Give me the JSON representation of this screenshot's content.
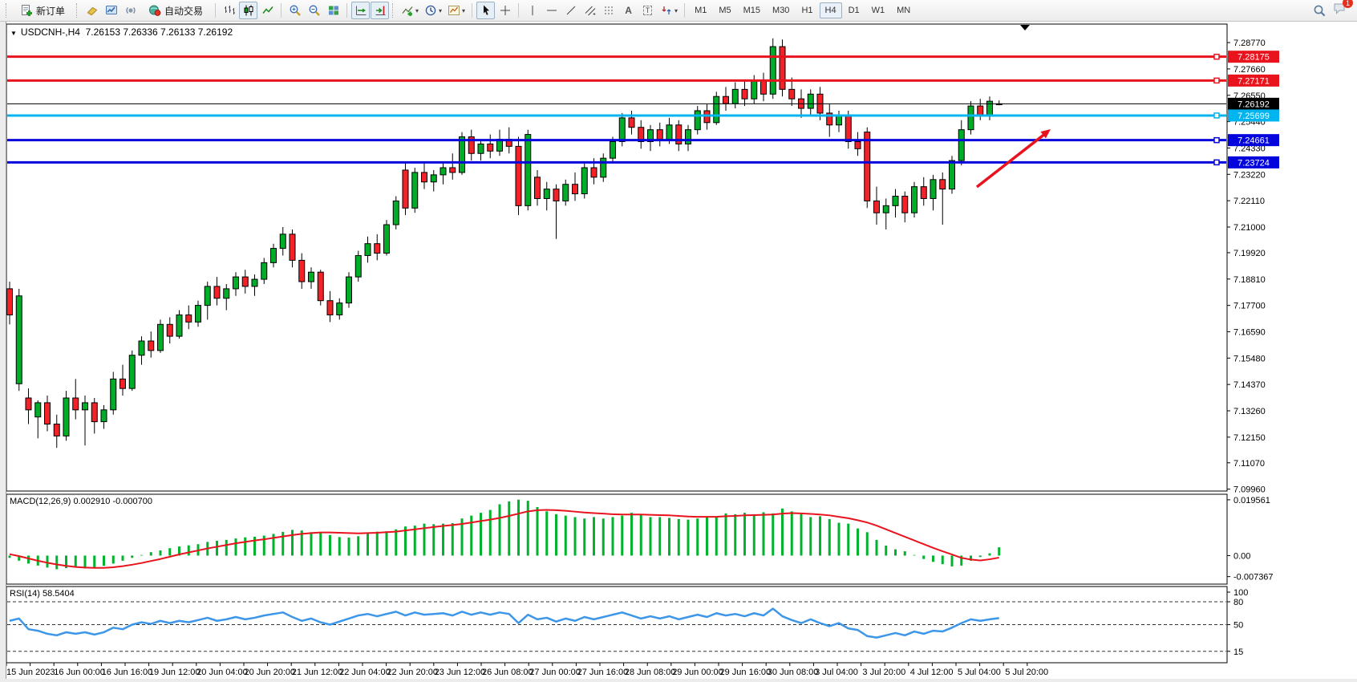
{
  "window": {
    "notification_badge": "1"
  },
  "toolbar": {
    "new_order_label": "新订单",
    "autotrading_label": "自动交易",
    "text_glyph": "A",
    "label_glyph": "T",
    "timeframes": [
      {
        "label": "M1",
        "active": false
      },
      {
        "label": "M5",
        "active": false
      },
      {
        "label": "M15",
        "active": false
      },
      {
        "label": "M30",
        "active": false
      },
      {
        "label": "H1",
        "active": false
      },
      {
        "label": "H4",
        "active": true
      },
      {
        "label": "D1",
        "active": false
      },
      {
        "label": "W1",
        "active": false
      },
      {
        "label": "MN",
        "active": false
      }
    ]
  },
  "chart": {
    "title": "USDCNH-,H4",
    "ohlc": "7.26153 7.26336 7.26133 7.26192",
    "price_axis_ticks": [
      "7.28770",
      "7.27660",
      "7.26550",
      "7.25440",
      "7.24330",
      "7.23220",
      "7.22110",
      "7.21000",
      "7.19920",
      "7.18810",
      "7.17700",
      "7.16590",
      "7.15480",
      "7.14370",
      "7.13260",
      "7.12150",
      "7.11070",
      "7.09960"
    ],
    "lines": [
      {
        "label": "7.28175",
        "price": 7.28175,
        "color": "#e8131d",
        "width": 3,
        "handle": true
      },
      {
        "label": "7.27171",
        "price": 7.27171,
        "color": "#e8131d",
        "width": 3,
        "handle": true
      },
      {
        "label": "7.26192",
        "price": 7.26192,
        "color": "#000000",
        "width": 1,
        "handle": false
      },
      {
        "label": "7.25699",
        "price": 7.25699,
        "color": "#00b4f0",
        "width": 3,
        "handle": true
      },
      {
        "label": "7.24661",
        "price": 7.24661,
        "color": "#0404dd",
        "width": 3,
        "handle": true
      },
      {
        "label": "7.23724",
        "price": 7.23724,
        "color": "#0404dd",
        "width": 3,
        "handle": true
      }
    ],
    "time_axis": [
      "15 Jun 2023",
      "16 Jun 00:00",
      "16 Jun 16:00",
      "19 Jun 12:00",
      "20 Jun 04:00",
      "20 Jun 20:00",
      "21 Jun 12:00",
      "22 Jun 04:00",
      "22 Jun 20:00",
      "23 Jun 12:00",
      "26 Jun 08:00",
      "27 Jun 00:00",
      "27 Jun 16:00",
      "28 Jun 08:00",
      "29 Jun 00:00",
      "29 Jun 16:00",
      "30 Jun 08:00",
      "3 Jul 04:00",
      "3 Jul 20:00",
      "4 Jul 12:00",
      "5 Jul 04:00",
      "5 Jul 20:00"
    ]
  },
  "macd": {
    "label": "MACD(12,26,9)",
    "value_main": "0.002910",
    "value_signal": "-0.000700",
    "axis_ticks": [
      "0.019561",
      "0.00",
      "-0.007367"
    ]
  },
  "rsi": {
    "label": "RSI(14)",
    "value": "58.5404",
    "axis_ticks": [
      "100",
      "80",
      "50",
      "15"
    ]
  },
  "chart_data": {
    "type": "candlestick",
    "symbol": "USDCNH",
    "timeframe": "H4",
    "title": "USDCNH-,H4 7.26153 7.26336 7.26133 7.26192",
    "price_range": [
      7.0988,
      7.2955
    ],
    "hlines": [
      7.28175,
      7.27171,
      7.26192,
      7.25699,
      7.24661,
      7.23724
    ],
    "candles": [
      [
        7.184,
        7.187,
        7.169,
        7.173
      ],
      [
        7.144,
        7.184,
        7.141,
        7.181
      ],
      [
        7.138,
        7.142,
        7.127,
        7.133
      ],
      [
        7.13,
        7.137,
        7.121,
        7.136
      ],
      [
        7.136,
        7.139,
        7.124,
        7.127
      ],
      [
        7.127,
        7.131,
        7.117,
        7.122
      ],
      [
        7.122,
        7.141,
        7.12,
        7.138
      ],
      [
        7.138,
        7.146,
        7.129,
        7.133
      ],
      [
        7.133,
        7.139,
        7.118,
        7.136
      ],
      [
        7.136,
        7.138,
        7.123,
        7.128
      ],
      [
        7.128,
        7.135,
        7.125,
        7.133
      ],
      [
        7.133,
        7.149,
        7.131,
        7.146
      ],
      [
        7.146,
        7.152,
        7.139,
        7.142
      ],
      [
        7.142,
        7.158,
        7.141,
        7.156
      ],
      [
        7.156,
        7.164,
        7.152,
        7.162
      ],
      [
        7.162,
        7.166,
        7.155,
        7.158
      ],
      [
        7.158,
        7.171,
        7.157,
        7.169
      ],
      [
        7.169,
        7.172,
        7.161,
        7.164
      ],
      [
        7.164,
        7.175,
        7.163,
        7.173
      ],
      [
        7.173,
        7.177,
        7.167,
        7.17
      ],
      [
        7.17,
        7.179,
        7.168,
        7.177
      ],
      [
        7.177,
        7.187,
        7.171,
        7.185
      ],
      [
        7.185,
        7.189,
        7.177,
        7.18
      ],
      [
        7.18,
        7.186,
        7.175,
        7.184
      ],
      [
        7.184,
        7.191,
        7.181,
        7.189
      ],
      [
        7.189,
        7.192,
        7.182,
        7.185
      ],
      [
        7.185,
        7.19,
        7.181,
        7.188
      ],
      [
        7.188,
        7.197,
        7.186,
        7.195
      ],
      [
        7.195,
        7.203,
        7.193,
        7.201
      ],
      [
        7.201,
        7.21,
        7.198,
        7.207
      ],
      [
        7.207,
        7.209,
        7.193,
        7.196
      ],
      [
        7.196,
        7.199,
        7.184,
        7.187
      ],
      [
        7.187,
        7.193,
        7.184,
        7.191
      ],
      [
        7.191,
        7.192,
        7.177,
        7.179
      ],
      [
        7.179,
        7.183,
        7.17,
        7.173
      ],
      [
        7.173,
        7.18,
        7.171,
        7.178
      ],
      [
        7.178,
        7.191,
        7.176,
        7.189
      ],
      [
        7.189,
        7.2,
        7.187,
        7.198
      ],
      [
        7.198,
        7.206,
        7.195,
        7.203
      ],
      [
        7.203,
        7.207,
        7.196,
        7.199
      ],
      [
        7.199,
        7.213,
        7.198,
        7.211
      ],
      [
        7.211,
        7.223,
        7.209,
        7.221
      ],
      [
        7.234,
        7.237,
        7.215,
        7.218
      ],
      [
        7.218,
        7.235,
        7.216,
        7.233
      ],
      [
        7.233,
        7.237,
        7.226,
        7.229
      ],
      [
        7.229,
        7.234,
        7.225,
        7.232
      ],
      [
        7.232,
        7.237,
        7.228,
        7.235
      ],
      [
        7.235,
        7.241,
        7.23,
        7.233
      ],
      [
        7.233,
        7.25,
        7.232,
        7.248
      ],
      [
        7.248,
        7.251,
        7.238,
        7.241
      ],
      [
        7.241,
        7.247,
        7.238,
        7.245
      ],
      [
        7.245,
        7.249,
        7.239,
        7.242
      ],
      [
        7.242,
        7.251,
        7.24,
        7.247
      ],
      [
        7.247,
        7.252,
        7.241,
        7.244
      ],
      [
        7.244,
        7.248,
        7.215,
        7.219
      ],
      [
        7.219,
        7.251,
        7.217,
        7.249
      ],
      [
        7.231,
        7.234,
        7.219,
        7.222
      ],
      [
        7.222,
        7.229,
        7.217,
        7.226
      ],
      [
        7.226,
        7.228,
        7.205,
        7.221
      ],
      [
        7.221,
        7.23,
        7.219,
        7.228
      ],
      [
        7.228,
        7.233,
        7.221,
        7.224
      ],
      [
        7.224,
        7.237,
        7.222,
        7.235
      ],
      [
        7.235,
        7.239,
        7.228,
        7.231
      ],
      [
        7.231,
        7.241,
        7.229,
        7.239
      ],
      [
        7.239,
        7.248,
        7.237,
        7.246
      ],
      [
        7.246,
        7.258,
        7.244,
        7.256
      ],
      [
        7.256,
        7.259,
        7.249,
        7.252
      ],
      [
        7.252,
        7.255,
        7.243,
        7.246
      ],
      [
        7.246,
        7.253,
        7.242,
        7.251
      ],
      [
        7.251,
        7.254,
        7.244,
        7.247
      ],
      [
        7.247,
        7.256,
        7.245,
        7.253
      ],
      [
        7.253,
        7.255,
        7.242,
        7.245
      ],
      [
        7.245,
        7.253,
        7.242,
        7.251
      ],
      [
        7.251,
        7.261,
        7.249,
        7.259
      ],
      [
        7.259,
        7.262,
        7.251,
        7.254
      ],
      [
        7.254,
        7.267,
        7.253,
        7.265
      ],
      [
        7.265,
        7.269,
        7.259,
        7.262
      ],
      [
        7.262,
        7.271,
        7.26,
        7.268
      ],
      [
        7.268,
        7.272,
        7.261,
        7.264
      ],
      [
        7.264,
        7.274,
        7.262,
        7.272
      ],
      [
        7.272,
        7.275,
        7.263,
        7.266
      ],
      [
        7.266,
        7.2895,
        7.264,
        7.286
      ],
      [
        7.286,
        7.289,
        7.265,
        7.268
      ],
      [
        7.268,
        7.273,
        7.261,
        7.264
      ],
      [
        7.264,
        7.268,
        7.256,
        7.26
      ],
      [
        7.26,
        7.268,
        7.257,
        7.266
      ],
      [
        7.266,
        7.269,
        7.255,
        7.258
      ],
      [
        7.258,
        7.262,
        7.248,
        7.253
      ],
      [
        7.253,
        7.259,
        7.25,
        7.257
      ],
      [
        7.257,
        7.259,
        7.243,
        7.246
      ],
      [
        7.246,
        7.25,
        7.24,
        7.243
      ],
      [
        7.25,
        7.252,
        7.218,
        7.221
      ],
      [
        7.221,
        7.227,
        7.211,
        7.216
      ],
      [
        7.216,
        7.222,
        7.209,
        7.219
      ],
      [
        7.219,
        7.226,
        7.214,
        7.223
      ],
      [
        7.223,
        7.225,
        7.212,
        7.216
      ],
      [
        7.216,
        7.229,
        7.214,
        7.227
      ],
      [
        7.227,
        7.231,
        7.219,
        7.222
      ],
      [
        7.222,
        7.232,
        7.217,
        7.23
      ],
      [
        7.23,
        7.233,
        7.211,
        7.226
      ],
      [
        7.226,
        7.24,
        7.224,
        7.238
      ],
      [
        7.238,
        7.255,
        7.236,
        7.251
      ],
      [
        7.251,
        7.263,
        7.249,
        7.261
      ],
      [
        7.261,
        7.264,
        7.255,
        7.257
      ],
      [
        7.257,
        7.265,
        7.255,
        7.263
      ],
      [
        7.26153,
        7.26336,
        7.26133,
        7.26192
      ]
    ],
    "macd": {
      "range": [
        -0.01,
        0.0215
      ],
      "histogram": [
        -0.0008,
        -0.0018,
        -0.0028,
        -0.0035,
        -0.0042,
        -0.0048,
        -0.0044,
        -0.004,
        -0.0045,
        -0.0042,
        -0.0036,
        -0.0028,
        -0.0018,
        -0.0008,
        0.0002,
        0.0012,
        0.0018,
        0.0026,
        0.0032,
        0.0036,
        0.004,
        0.0048,
        0.0052,
        0.0055,
        0.006,
        0.0064,
        0.0066,
        0.007,
        0.0076,
        0.0083,
        0.009,
        0.0088,
        0.0082,
        0.008,
        0.0072,
        0.0065,
        0.0063,
        0.0068,
        0.0077,
        0.0084,
        0.0085,
        0.0092,
        0.0102,
        0.0105,
        0.0112,
        0.011,
        0.0112,
        0.0114,
        0.013,
        0.014,
        0.015,
        0.016,
        0.018,
        0.019,
        0.0196,
        0.0192,
        0.017,
        0.0155,
        0.0145,
        0.014,
        0.0135,
        0.013,
        0.0135,
        0.013,
        0.0135,
        0.014,
        0.015,
        0.0145,
        0.0135,
        0.0135,
        0.0132,
        0.0128,
        0.0126,
        0.013,
        0.0138,
        0.0135,
        0.0148,
        0.0145,
        0.015,
        0.0145,
        0.0152,
        0.0148,
        0.0165,
        0.0155,
        0.0145,
        0.0135,
        0.0138,
        0.0128,
        0.0115,
        0.0112,
        0.0095,
        0.0082,
        0.0055,
        0.0035,
        0.0022,
        0.0015,
        0.0002,
        -0.0012,
        -0.0022,
        -0.003,
        -0.0038,
        -0.0035,
        -0.0018,
        -0.0005,
        0.0008,
        0.0029
      ],
      "signal": [
        0.0005,
        -0.0002,
        -0.001,
        -0.0018,
        -0.0025,
        -0.0031,
        -0.0036,
        -0.004,
        -0.0042,
        -0.0043,
        -0.0043,
        -0.0041,
        -0.0037,
        -0.0032,
        -0.0026,
        -0.0019,
        -0.0012,
        -0.0004,
        0.0004,
        0.0011,
        0.0018,
        0.0025,
        0.0031,
        0.0037,
        0.0043,
        0.0048,
        0.0053,
        0.0057,
        0.0062,
        0.0067,
        0.0072,
        0.0076,
        0.0079,
        0.0081,
        0.0081,
        0.008,
        0.0079,
        0.0078,
        0.0079,
        0.008,
        0.0082,
        0.0084,
        0.0088,
        0.0092,
        0.0096,
        0.01,
        0.0104,
        0.0107,
        0.0111,
        0.0116,
        0.0121,
        0.0126,
        0.0132,
        0.0139,
        0.0147,
        0.0155,
        0.0159,
        0.016,
        0.0159,
        0.0157,
        0.0154,
        0.0151,
        0.0149,
        0.0147,
        0.0145,
        0.0144,
        0.0144,
        0.0144,
        0.0143,
        0.0142,
        0.0141,
        0.0139,
        0.0137,
        0.0136,
        0.0136,
        0.0136,
        0.0138,
        0.0139,
        0.0141,
        0.0142,
        0.0143,
        0.0144,
        0.0147,
        0.0149,
        0.0148,
        0.0146,
        0.0144,
        0.0141,
        0.0136,
        0.0131,
        0.0124,
        0.0116,
        0.0105,
        0.0092,
        0.0079,
        0.0066,
        0.0053,
        0.004,
        0.0027,
        0.0015,
        0.0004,
        -0.0008,
        -0.0014,
        -0.0017,
        -0.0013,
        -0.0007
      ]
    },
    "rsi": {
      "range": [
        0,
        100
      ],
      "levels": [
        80,
        50,
        15
      ],
      "values": [
        55,
        58,
        44,
        42,
        38,
        36,
        40,
        38,
        40,
        37,
        40,
        46,
        44,
        50,
        53,
        51,
        55,
        52,
        55,
        53,
        56,
        59,
        55,
        57,
        60,
        57,
        59,
        62,
        64,
        66,
        60,
        55,
        58,
        53,
        50,
        54,
        58,
        62,
        64,
        61,
        64,
        67,
        62,
        66,
        63,
        64,
        65,
        62,
        67,
        63,
        66,
        63,
        66,
        64,
        52,
        63,
        57,
        59,
        54,
        58,
        55,
        60,
        57,
        60,
        63,
        66,
        62,
        58,
        61,
        58,
        61,
        57,
        60,
        63,
        60,
        65,
        62,
        64,
        61,
        65,
        62,
        71,
        61,
        56,
        52,
        57,
        52,
        48,
        52,
        45,
        43,
        35,
        33,
        36,
        39,
        36,
        41,
        38,
        42,
        41,
        46,
        52,
        57,
        55,
        57,
        58.5
      ]
    },
    "annotation": {
      "type": "arrow",
      "color": "#e8131d",
      "from_xy": [
        1218,
        233
      ],
      "to_xy": [
        1310,
        161
      ]
    },
    "colors": {
      "bull": "#00ad29",
      "bear": "#f32128",
      "wick": "#000000",
      "macd_hist": "#00b22c",
      "macd_signal": "#e8131d",
      "rsi_line": "#3d96e8"
    }
  }
}
